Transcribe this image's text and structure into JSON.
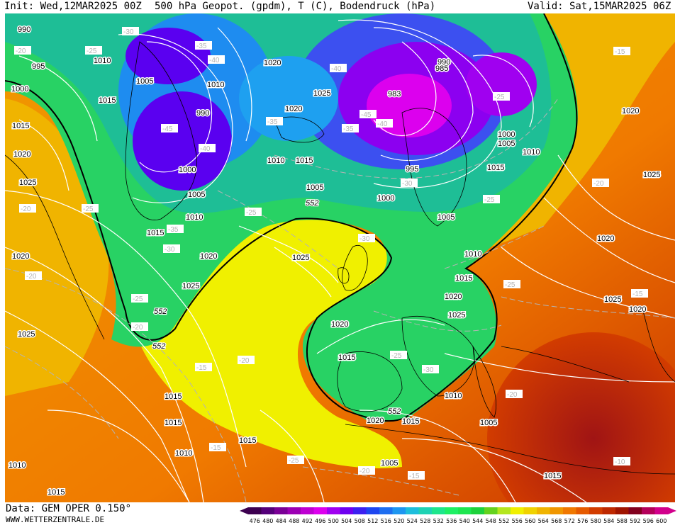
{
  "header": {
    "init": "Init: Wed,12MAR2025 00Z",
    "title": "500 hPa Geopot. (gpdm), T (C), Bodendruck (hPa)",
    "valid": "Valid: Sat,15MAR2025 06Z"
  },
  "footer": {
    "source": "Data: GEM OPER 0.150°",
    "website": "WWW.WETTERZENTRALE.DE"
  },
  "colorbar": {
    "ticks": [
      "476",
      "480",
      "484",
      "488",
      "492",
      "496",
      "500",
      "504",
      "508",
      "512",
      "516",
      "520",
      "524",
      "528",
      "532",
      "536",
      "540",
      "544",
      "548",
      "552",
      "556",
      "560",
      "564",
      "568",
      "572",
      "576",
      "580",
      "584",
      "588",
      "592",
      "596",
      "600"
    ],
    "colors": [
      "#3d0050",
      "#55007a",
      "#7a0096",
      "#9c00b4",
      "#be00d2",
      "#dc00ee",
      "#a000f0",
      "#6e00f0",
      "#3c20f0",
      "#1e46f0",
      "#1e6ef0",
      "#1e96f0",
      "#1ebedc",
      "#1ed2b4",
      "#1ee68c",
      "#1ef064",
      "#1ee650",
      "#1ed23c",
      "#64d21e",
      "#b4e61e",
      "#f0f000",
      "#f0d200",
      "#f0b400",
      "#f09600",
      "#f07800",
      "#e65a00",
      "#d23c00",
      "#be2800",
      "#a01400",
      "#82001e",
      "#b4005a",
      "#d2008c"
    ]
  },
  "map_labels": {
    "pressure": [
      "990",
      "995",
      "1000",
      "1005",
      "1010",
      "1015",
      "1020",
      "1025",
      "990",
      "1000",
      "1005",
      "1010",
      "1015",
      "1020",
      "1025",
      "985",
      "983",
      "990",
      "995",
      "1000",
      "1005",
      "1010",
      "1015",
      "1020",
      "1025",
      "1010",
      "1015",
      "1020",
      "1025",
      "1020",
      "1015",
      "1010",
      "1005",
      "1000",
      "1005",
      "1010",
      "1015",
      "1020",
      "1025",
      "1025",
      "1020",
      "1015",
      "1010",
      "1005",
      "1020",
      "1015",
      "1010",
      "1005",
      "1015",
      "1020",
      "1025",
      "1020",
      "1015",
      "1010",
      "1015",
      "1015",
      "1015",
      "1020",
      "1025"
    ],
    "temperature": [
      "-20",
      "-25",
      "-30",
      "-35",
      "-40",
      "-45",
      "-40",
      "-35",
      "-30",
      "-25",
      "-20",
      "-25",
      "-30",
      "-35",
      "-40",
      "-45",
      "-40",
      "-35",
      "-30",
      "-25",
      "-20",
      "-25",
      "-20",
      "-15",
      "-20",
      "-25",
      "-30",
      "-25",
      "-20",
      "-15",
      "-10",
      "-15",
      "-15",
      "-20",
      "-15",
      "-25",
      "-20",
      "-25"
    ],
    "geopotential": [
      "552",
      "552",
      "552",
      "552"
    ]
  },
  "colors": {
    "contour_isobar": "#ffffff",
    "contour_isotherm": "#b4b4b4",
    "contour_552": "#000000",
    "coastline": "#000000"
  }
}
